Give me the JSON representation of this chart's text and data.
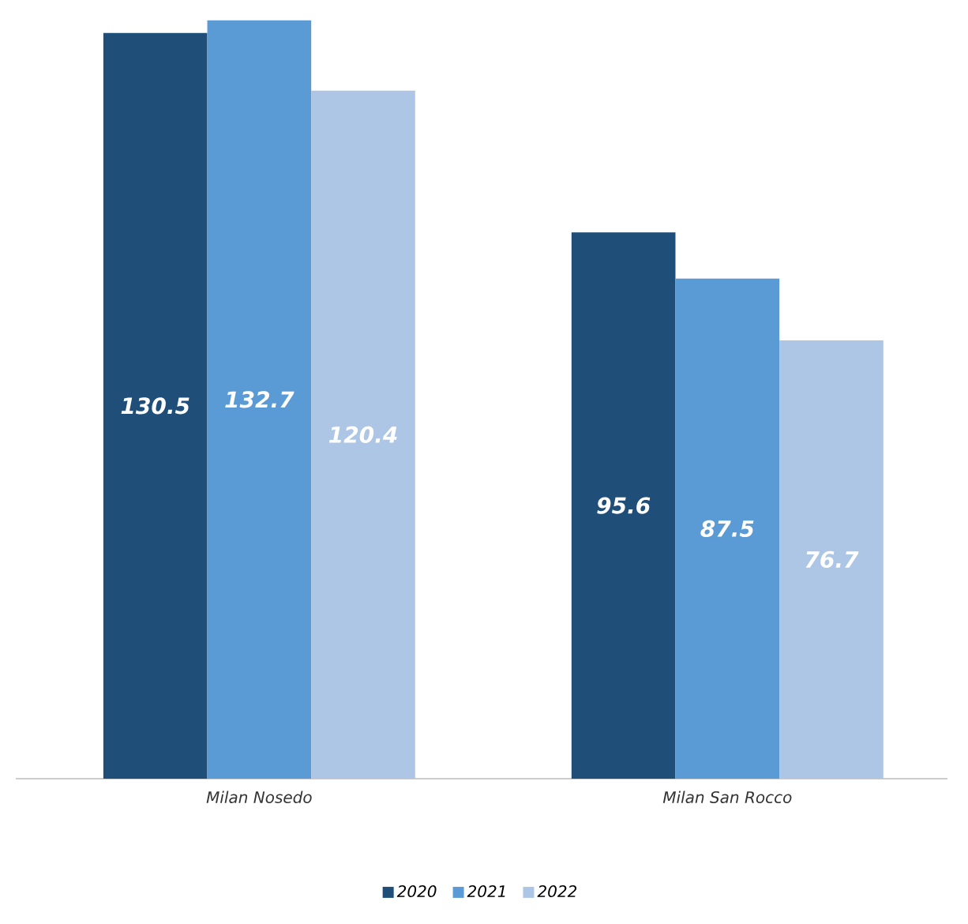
{
  "chart_data": {
    "type": "bar",
    "categories": [
      "Milan Nosedo",
      "Milan San Rocco"
    ],
    "series": [
      {
        "name": "2020",
        "color": "#1f4e79",
        "values": [
          130.5,
          95.6
        ]
      },
      {
        "name": "2021",
        "color": "#5b9bd5",
        "values": [
          132.7,
          87.5
        ]
      },
      {
        "name": "2022",
        "color": "#adc6e5",
        "values": [
          120.4,
          76.7
        ]
      }
    ],
    "data_labels": true,
    "legend": "bottom",
    "grid": false
  }
}
